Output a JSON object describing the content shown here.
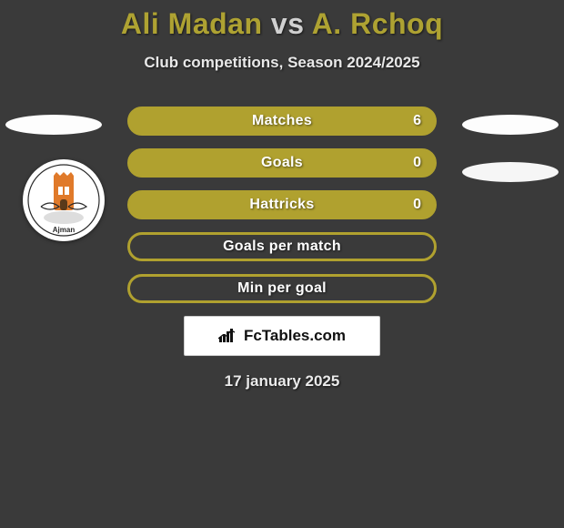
{
  "title": {
    "player1": "Ali Madan",
    "vs": "vs",
    "player2": "A. Rchoq"
  },
  "subtitle": "Club competitions, Season 2024/2025",
  "colors": {
    "accent": "#b0a12f",
    "background": "#3a3a3a",
    "text_light": "#ffffff"
  },
  "stats": [
    {
      "label": "Matches",
      "value": "6",
      "filled": true
    },
    {
      "label": "Goals",
      "value": "0",
      "filled": true
    },
    {
      "label": "Hattricks",
      "value": "0",
      "filled": true
    },
    {
      "label": "Goals per match",
      "value": "",
      "filled": false
    },
    {
      "label": "Min per goal",
      "value": "",
      "filled": false
    }
  ],
  "site_badge": {
    "text": "FcTables.com"
  },
  "date": "17 january 2025",
  "side_shapes": {
    "left_top_ellipse": true,
    "right_top_ellipse": true,
    "right_mid_ellipse": true,
    "left_club_logo": true
  },
  "club_logo": {
    "bg": "#ffffff",
    "tower_color": "#e07a2a",
    "ring_color": "#222222",
    "script_color": "#2a2a2a"
  }
}
